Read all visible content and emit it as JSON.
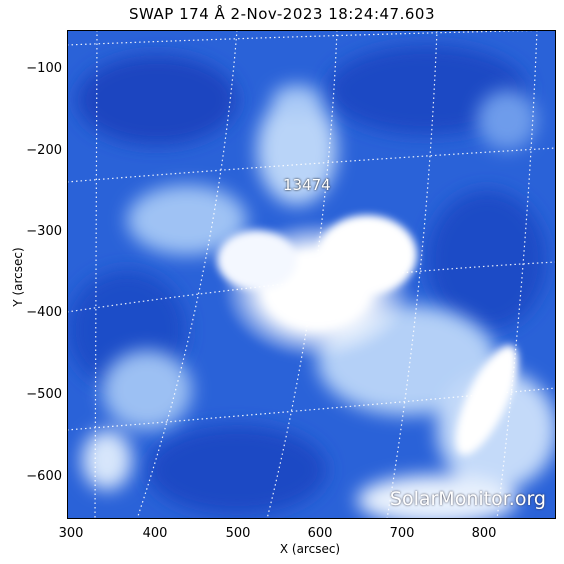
{
  "title": "SWAP 174 Å  2-Nov-2023 18:24:47.603",
  "xlabel": "X (arcsec)",
  "ylabel": "Y (arcsec)",
  "xticks": [
    "300",
    "400",
    "500",
    "600",
    "700",
    "800"
  ],
  "yticks": [
    "−100",
    "−200",
    "−300",
    "−400",
    "−500",
    "−600"
  ],
  "active_region": "13474",
  "watermark": "SolarMonitor.org",
  "colors": {
    "dark_blue": "#1c4fc8",
    "mid_blue": "#3d7be6",
    "light_blue": "#9cc4f6",
    "core": "#ffffff"
  }
}
